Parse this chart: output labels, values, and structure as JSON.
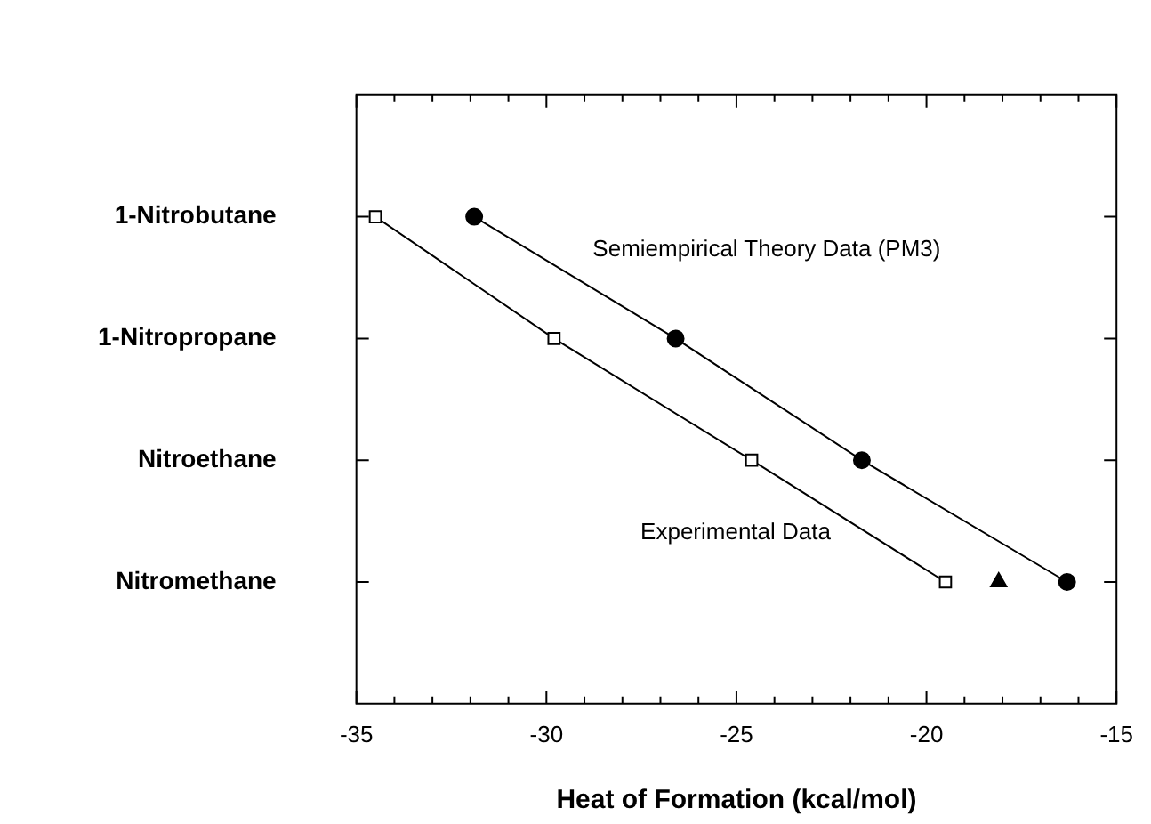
{
  "chart_data": {
    "type": "line",
    "orientation": "horizontal",
    "xlabel": "Heat of Formation (kcal/mol)",
    "categories": [
      "1-Nitrobutane",
      "1-Nitropropane",
      "Nitroethane",
      "Nitromethane"
    ],
    "xlim": [
      -35,
      -15
    ],
    "xticks": [
      -35,
      {
        "value": -34,
        "label": null
      },
      {
        "value": -33,
        "label": null
      },
      {
        "value": -32,
        "label": null
      },
      {
        "value": -31,
        "label": null
      },
      -30,
      {
        "value": -29,
        "label": null
      },
      {
        "value": -28,
        "label": null
      },
      {
        "value": -27,
        "label": null
      },
      {
        "value": -26,
        "label": null
      },
      -25,
      {
        "value": -24,
        "label": null
      },
      {
        "value": -23,
        "label": null
      },
      {
        "value": -22,
        "label": null
      },
      {
        "value": -21,
        "label": null
      },
      -20,
      {
        "value": -19,
        "label": null
      },
      {
        "value": -18,
        "label": null
      },
      {
        "value": -17,
        "label": null
      },
      {
        "value": -16,
        "label": null
      },
      -15
    ],
    "grid": false,
    "legend": false,
    "series": [
      {
        "name": "Experimental Data",
        "type": "line",
        "marker": "square",
        "color": "#000000",
        "values": [
          -34.5,
          -29.8,
          -24.6,
          -19.5
        ]
      },
      {
        "name": "Semiempirical Theory Data (PM3)",
        "type": "line",
        "marker": "circle",
        "color": "#000000",
        "values": [
          -31.9,
          -26.6,
          -21.7,
          -16.3
        ]
      },
      {
        "type": "scatter",
        "marker": "triangle",
        "color": "#000000",
        "values": [
          null,
          null,
          null,
          -18.1
        ]
      }
    ]
  }
}
